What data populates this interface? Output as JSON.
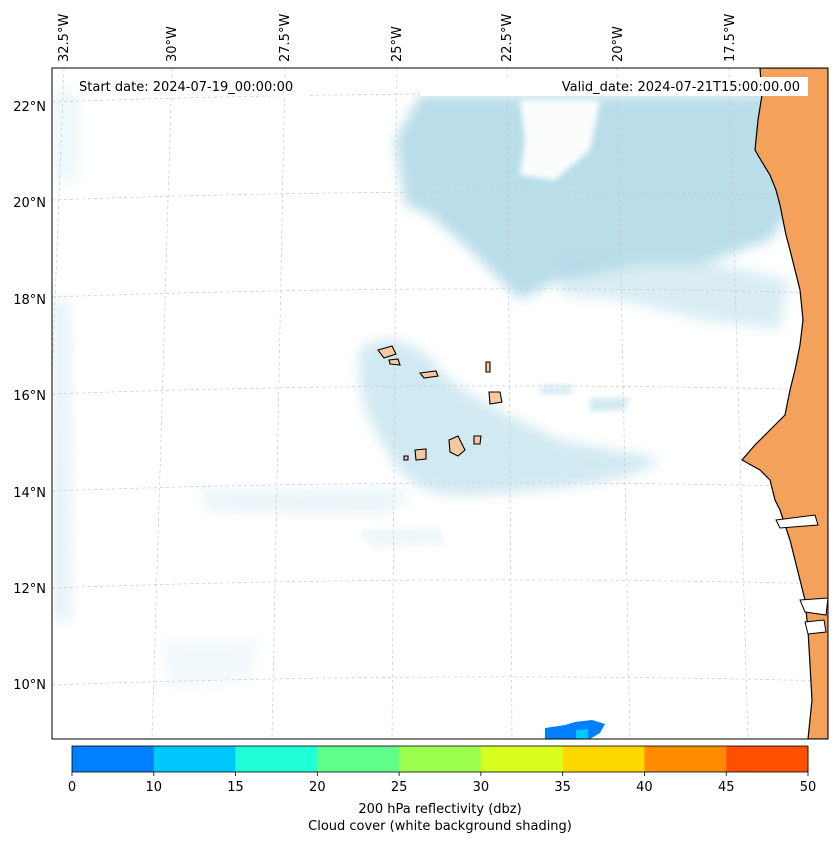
{
  "map": {
    "start_date_label": "Start date: 2024-07-19_00:00:00",
    "valid_date_label": "Valid_date: 2024-07-21T15:00:00.00",
    "lon_labels": [
      "32.5°W",
      "30°W",
      "27.5°W",
      "25°W",
      "22.5°W",
      "20°W",
      "17.5°W"
    ],
    "lat_labels": [
      "22°N",
      "20°N",
      "18°N",
      "16°N",
      "14°N",
      "12°N",
      "10°N"
    ],
    "land_color_islands": "#f8c9a0",
    "land_color_continent": "#f4a15c",
    "cloud_color": "#add8e6"
  },
  "colorbar": {
    "ticks": [
      "0",
      "10",
      "15",
      "20",
      "25",
      "30",
      "35",
      "40",
      "45",
      "50"
    ],
    "colors": [
      "#0080ff",
      "#00c8ff",
      "#20ffd8",
      "#60ff8c",
      "#9cff50",
      "#d8ff20",
      "#ffd700",
      "#ff8c00",
      "#ff5000"
    ],
    "label": "200 hPa reflectivity (dbz)",
    "sublabel": "Cloud cover (white background shading)"
  }
}
